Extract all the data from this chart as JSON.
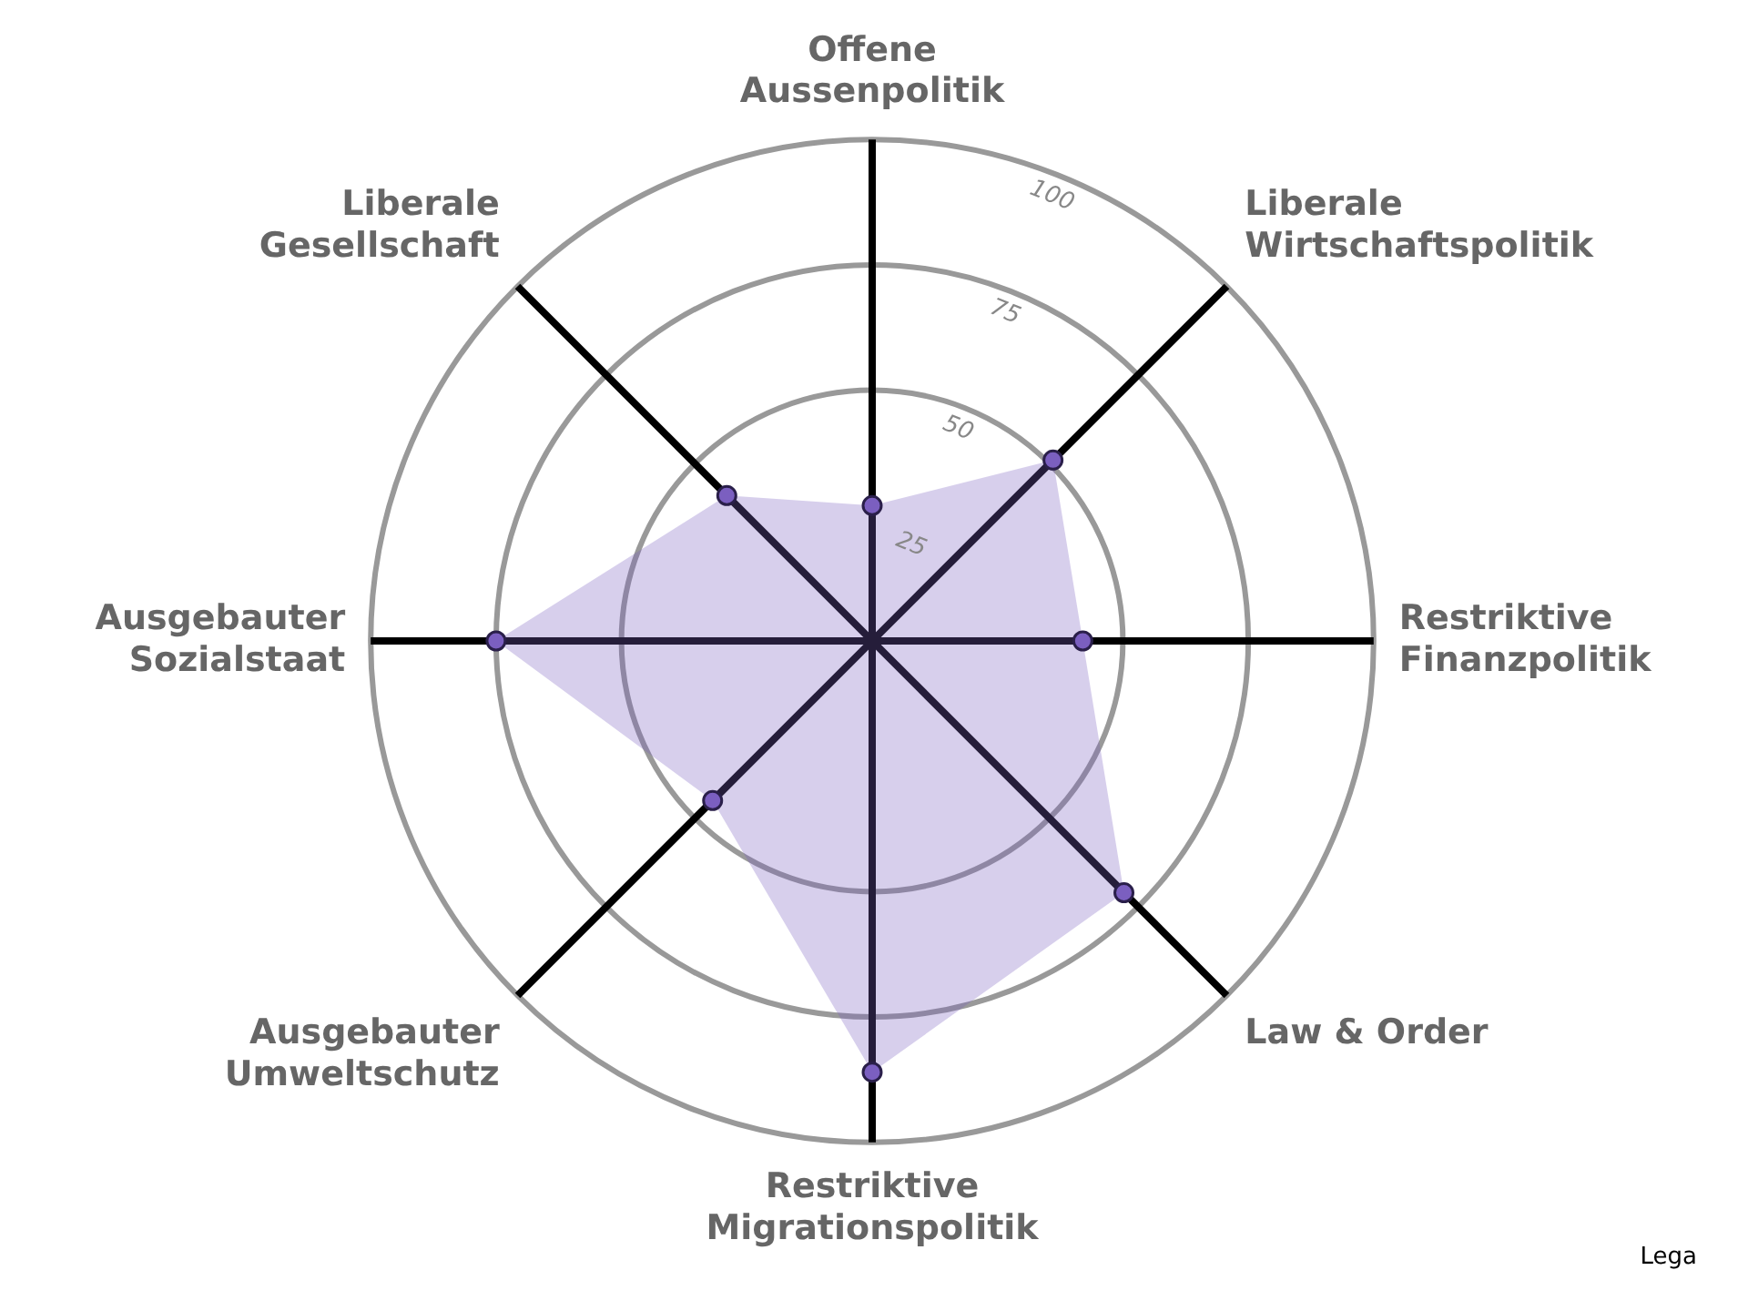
{
  "chart_data": {
    "type": "radar",
    "categories": [
      "Offene Aussenpolitik",
      "Liberale Wirtschaftspolitik",
      "Restriktive Finanzpolitik",
      "Law & Order",
      "Restriktive Migrationspolitik",
      "Ausgebauter Umweltschutz",
      "Ausgebauter Sozialstaat",
      "Liberale Gesellschaft"
    ],
    "series": [
      {
        "color": "#7b5fc0",
        "values": [
          27,
          51,
          42,
          71,
          86,
          45,
          75,
          41
        ]
      }
    ],
    "ylim": [
      0,
      100
    ],
    "yticks": [
      25,
      50,
      75,
      100
    ],
    "grid": true,
    "legend": false,
    "marker": "circle",
    "annotations": [
      "Lega"
    ]
  }
}
